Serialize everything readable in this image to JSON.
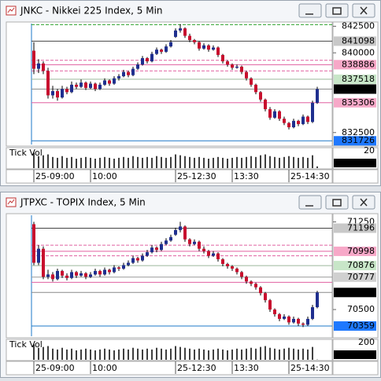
{
  "windows": [
    {
      "title": "JNKC - Nikkei 225 Index, 5 Min",
      "chart_data": {
        "type": "candlestick",
        "up_color": "#1f2f8f",
        "down_color": "#c8102e",
        "ylim": [
          831300,
          842900
        ],
        "yticks": [
          842500,
          840000,
          832500
        ],
        "categories": [
          "25-09:00",
          null,
          null,
          null,
          null,
          null,
          null,
          null,
          null,
          null,
          null,
          null,
          "10:00",
          null,
          null,
          null,
          null,
          null,
          null,
          null,
          null,
          null,
          null,
          null,
          null,
          null,
          null,
          null,
          null,
          null,
          "25-12:30",
          null,
          null,
          null,
          null,
          null,
          null,
          null,
          null,
          null,
          null,
          null,
          "13:30",
          null,
          null,
          null,
          null,
          null,
          null,
          null,
          null,
          null,
          null,
          null,
          "25-14:30",
          null,
          null,
          null,
          null,
          null,
          null
        ],
        "candles": [
          [
            840200,
            841000,
            838000,
            838500
          ],
          [
            838500,
            839400,
            838100,
            839000
          ],
          [
            839000,
            839200,
            838000,
            838300
          ],
          [
            838300,
            838600,
            835700,
            836000
          ],
          [
            836000,
            836900,
            835700,
            836400
          ],
          [
            836400,
            836600,
            835500,
            835800
          ],
          [
            835800,
            836900,
            835700,
            836600
          ],
          [
            836600,
            836800,
            836100,
            836300
          ],
          [
            836300,
            837300,
            836200,
            837000
          ],
          [
            837000,
            837200,
            836600,
            836800
          ],
          [
            836800,
            837500,
            836700,
            837200
          ],
          [
            837200,
            837300,
            836500,
            836700
          ],
          [
            836700,
            837300,
            836600,
            837100
          ],
          [
            837100,
            837200,
            836400,
            836600
          ],
          [
            836600,
            837200,
            836500,
            837000
          ],
          [
            837000,
            837600,
            836900,
            837400
          ],
          [
            837400,
            837500,
            836900,
            837100
          ],
          [
            837100,
            837800,
            837000,
            837600
          ],
          [
            837600,
            838000,
            837400,
            837800
          ],
          [
            837800,
            838400,
            837700,
            838200
          ],
          [
            838200,
            838300,
            837700,
            837900
          ],
          [
            837900,
            838700,
            837800,
            838500
          ],
          [
            838500,
            839100,
            838400,
            838900
          ],
          [
            838900,
            839700,
            838800,
            839500
          ],
          [
            839500,
            839600,
            839000,
            839200
          ],
          [
            839200,
            840100,
            839100,
            839900
          ],
          [
            839900,
            840500,
            839800,
            840300
          ],
          [
            840300,
            840400,
            839900,
            840100
          ],
          [
            840100,
            840800,
            840000,
            840600
          ],
          [
            840600,
            841200,
            840500,
            841000
          ],
          [
            841500,
            842300,
            841400,
            842100
          ],
          [
            842100,
            842700,
            841900,
            842300
          ],
          [
            842300,
            842400,
            841400,
            841600
          ],
          [
            841600,
            841800,
            841000,
            841200
          ],
          [
            841200,
            841300,
            840800,
            841000
          ],
          [
            841000,
            841100,
            840200,
            840400
          ],
          [
            840400,
            840900,
            840300,
            840700
          ],
          [
            840700,
            840800,
            840100,
            840300
          ],
          [
            840300,
            840700,
            840200,
            840500
          ],
          [
            840500,
            840600,
            839600,
            839800
          ],
          [
            839800,
            839900,
            839000,
            839200
          ],
          [
            839200,
            839300,
            838700,
            838900
          ],
          [
            838900,
            839000,
            838400,
            838600
          ],
          [
            838600,
            838900,
            838500,
            838700
          ],
          [
            838700,
            838800,
            838000,
            838200
          ],
          [
            838200,
            838300,
            837400,
            837600
          ],
          [
            837600,
            837700,
            836800,
            837000
          ],
          [
            837000,
            837100,
            836100,
            836300
          ],
          [
            836300,
            836400,
            835400,
            835600
          ],
          [
            835600,
            835700,
            834500,
            834700
          ],
          [
            834700,
            834900,
            833700,
            833900
          ],
          [
            833900,
            834700,
            833800,
            834500
          ],
          [
            834500,
            834600,
            833600,
            833800
          ],
          [
            833800,
            834000,
            833200,
            833400
          ],
          [
            833400,
            833500,
            832800,
            833000
          ],
          [
            833000,
            833800,
            832900,
            833600
          ],
          [
            833600,
            833700,
            833100,
            833300
          ],
          [
            833300,
            834200,
            833200,
            834000
          ],
          [
            834000,
            834100,
            833300,
            833500
          ],
          [
            833500,
            835500,
            833400,
            835300
          ],
          [
            835300,
            836800,
            835200,
            836590
          ]
        ],
        "lines": [
          {
            "value": 842650,
            "color": "#2ca02c",
            "dash": true
          },
          {
            "value": 841098,
            "color": "#444444",
            "box": "#c8c8c8"
          },
          {
            "value": 839300,
            "color": "#e060a0",
            "dash": true
          },
          {
            "value": 838886,
            "color": "#e060a0",
            "box": "#f7a8c8"
          },
          {
            "value": 838300,
            "color": "#e060a0",
            "dash": true
          },
          {
            "value": 837518,
            "color": "#9cb89c",
            "box": "#c8e6c8"
          },
          {
            "value": 836590,
            "color": "#888888",
            "box": "#000000",
            "text_color": "#ffffff"
          },
          {
            "value": 835306,
            "color": "#e060a0",
            "box": "#f7a8c8"
          },
          {
            "value": 831726,
            "color": "#1e78c8",
            "box": "#1e78ff",
            "text_color": "#ffffff"
          }
        ],
        "volume": {
          "label": "Tick Vol",
          "ylim": [
            0,
            22
          ],
          "yticks": [
            20
          ],
          "values": [
            18,
            14,
            15,
            16,
            13,
            12,
            14,
            12,
            13,
            11,
            12,
            13,
            12,
            11,
            12,
            13,
            12,
            11,
            12,
            13,
            12,
            14,
            13,
            12,
            13,
            12,
            14,
            13,
            12,
            13,
            16,
            15,
            14,
            13,
            12,
            13,
            12,
            11,
            12,
            13,
            12,
            11,
            12,
            13,
            12,
            13,
            14,
            13,
            15,
            16,
            14,
            13,
            12,
            13,
            14,
            13,
            12,
            13,
            12,
            15,
            2
          ]
        }
      }
    },
    {
      "title": "JTPXC - TOPIX Index, 5 Min",
      "chart_data": {
        "type": "candlestick",
        "up_color": "#1f2f8f",
        "down_color": "#c8102e",
        "ylim": [
          70265,
          71320
        ],
        "yticks": [
          71250,
          70500
        ],
        "categories": [
          "25-09:00",
          null,
          null,
          null,
          null,
          null,
          null,
          null,
          null,
          null,
          null,
          null,
          "10:00",
          null,
          null,
          null,
          null,
          null,
          null,
          null,
          null,
          null,
          null,
          null,
          null,
          null,
          null,
          null,
          null,
          null,
          "25-12:30",
          null,
          null,
          null,
          null,
          null,
          null,
          null,
          null,
          null,
          null,
          null,
          "13:30",
          null,
          null,
          null,
          null,
          null,
          null,
          null,
          null,
          null,
          null,
          null,
          "25-14:30",
          null,
          null,
          null,
          null,
          null,
          null
        ],
        "candles": [
          [
            71230,
            71250,
            70880,
            70900
          ],
          [
            70900,
            71050,
            70880,
            71020
          ],
          [
            71020,
            71040,
            70760,
            70780
          ],
          [
            70780,
            70840,
            70760,
            70800
          ],
          [
            70800,
            70820,
            70740,
            70760
          ],
          [
            70760,
            70850,
            70750,
            70830
          ],
          [
            70830,
            70840,
            70770,
            70790
          ],
          [
            70790,
            70810,
            70750,
            70770
          ],
          [
            70770,
            70840,
            70760,
            70820
          ],
          [
            70820,
            70830,
            70770,
            70790
          ],
          [
            70790,
            70830,
            70780,
            70810
          ],
          [
            70810,
            70820,
            70760,
            70780
          ],
          [
            70780,
            70820,
            70770,
            70800
          ],
          [
            70800,
            70850,
            70790,
            70830
          ],
          [
            70830,
            70840,
            70780,
            70800
          ],
          [
            70800,
            70860,
            70790,
            70840
          ],
          [
            70840,
            70850,
            70800,
            70820
          ],
          [
            70820,
            70880,
            70810,
            70860
          ],
          [
            70860,
            70870,
            70830,
            70850
          ],
          [
            70850,
            70900,
            70840,
            70880
          ],
          [
            70880,
            70920,
            70870,
            70900
          ],
          [
            70900,
            70960,
            70890,
            70940
          ],
          [
            70940,
            70950,
            70900,
            70920
          ],
          [
            70920,
            70980,
            70910,
            70960
          ],
          [
            70960,
            71010,
            70950,
            70990
          ],
          [
            70990,
            71050,
            70980,
            71030
          ],
          [
            71030,
            71040,
            70990,
            71010
          ],
          [
            71010,
            71080,
            71000,
            71060
          ],
          [
            71060,
            71110,
            71050,
            71090
          ],
          [
            71090,
            71140,
            71080,
            71120
          ],
          [
            71140,
            71200,
            71130,
            71180
          ],
          [
            71180,
            71250,
            71160,
            71210
          ],
          [
            71210,
            71220,
            71080,
            71100
          ],
          [
            71100,
            71110,
            71040,
            71060
          ],
          [
            71060,
            71100,
            71050,
            71080
          ],
          [
            71080,
            71090,
            71000,
            71020
          ],
          [
            71020,
            71040,
            70980,
            71000
          ],
          [
            71000,
            71010,
            70940,
            70960
          ],
          [
            70960,
            71000,
            70950,
            70980
          ],
          [
            70980,
            70990,
            70910,
            70930
          ],
          [
            70930,
            70940,
            70870,
            70890
          ],
          [
            70890,
            70900,
            70850,
            70870
          ],
          [
            70870,
            70880,
            70830,
            70850
          ],
          [
            70850,
            70860,
            70800,
            70820
          ],
          [
            70820,
            70830,
            70760,
            70780
          ],
          [
            70780,
            70790,
            70720,
            70740
          ],
          [
            70740,
            70750,
            70700,
            70720
          ],
          [
            70720,
            70730,
            70670,
            70690
          ],
          [
            70690,
            70700,
            70620,
            70640
          ],
          [
            70640,
            70650,
            70560,
            70580
          ],
          [
            70580,
            70590,
            70480,
            70500
          ],
          [
            70500,
            70510,
            70440,
            70460
          ],
          [
            70460,
            70470,
            70400,
            70420
          ],
          [
            70420,
            70460,
            70410,
            70440
          ],
          [
            70440,
            70450,
            70370,
            70390
          ],
          [
            70390,
            70440,
            70380,
            70420
          ],
          [
            70420,
            70430,
            70360,
            70380
          ],
          [
            70380,
            70390,
            70350,
            70370
          ],
          [
            70370,
            70440,
            70360,
            70420
          ],
          [
            70420,
            70540,
            70410,
            70520
          ],
          [
            70520,
            70660,
            70510,
            70646
          ]
        ],
        "lines": [
          {
            "value": 71196,
            "color": "#444444",
            "box": "#c8c8c8"
          },
          {
            "value": 71050,
            "color": "#e060a0",
            "dash": true
          },
          {
            "value": 70998,
            "color": "#e060a0",
            "box": "#f7a8c8"
          },
          {
            "value": 70960,
            "color": "#e060a0",
            "dash": true
          },
          {
            "value": 70876,
            "color": "#9cb89c",
            "box": "#c8e6c8"
          },
          {
            "value": 70777,
            "color": "#999999",
            "box": "#d0d0d0"
          },
          {
            "value": 70733,
            "color": "#e060a0"
          },
          {
            "value": 70646,
            "color": "#888888",
            "box": "#000000",
            "text_color": "#ffffff"
          },
          {
            "value": 70359,
            "color": "#1e78c8",
            "box": "#1e78ff",
            "text_color": "#ffffff"
          }
        ],
        "volume": {
          "label": "Tick Vol",
          "ylim": [
            0,
            220
          ],
          "yticks": [
            200
          ],
          "values": [
            180,
            140,
            150,
            160,
            130,
            120,
            140,
            120,
            130,
            110,
            120,
            130,
            120,
            110,
            120,
            130,
            120,
            110,
            120,
            130,
            120,
            140,
            130,
            120,
            130,
            120,
            140,
            130,
            120,
            130,
            160,
            150,
            140,
            130,
            120,
            130,
            120,
            110,
            120,
            130,
            120,
            110,
            120,
            130,
            120,
            130,
            140,
            130,
            150,
            160,
            140,
            130,
            120,
            130,
            140,
            130,
            120,
            130,
            120,
            150,
            3
          ]
        }
      }
    }
  ]
}
